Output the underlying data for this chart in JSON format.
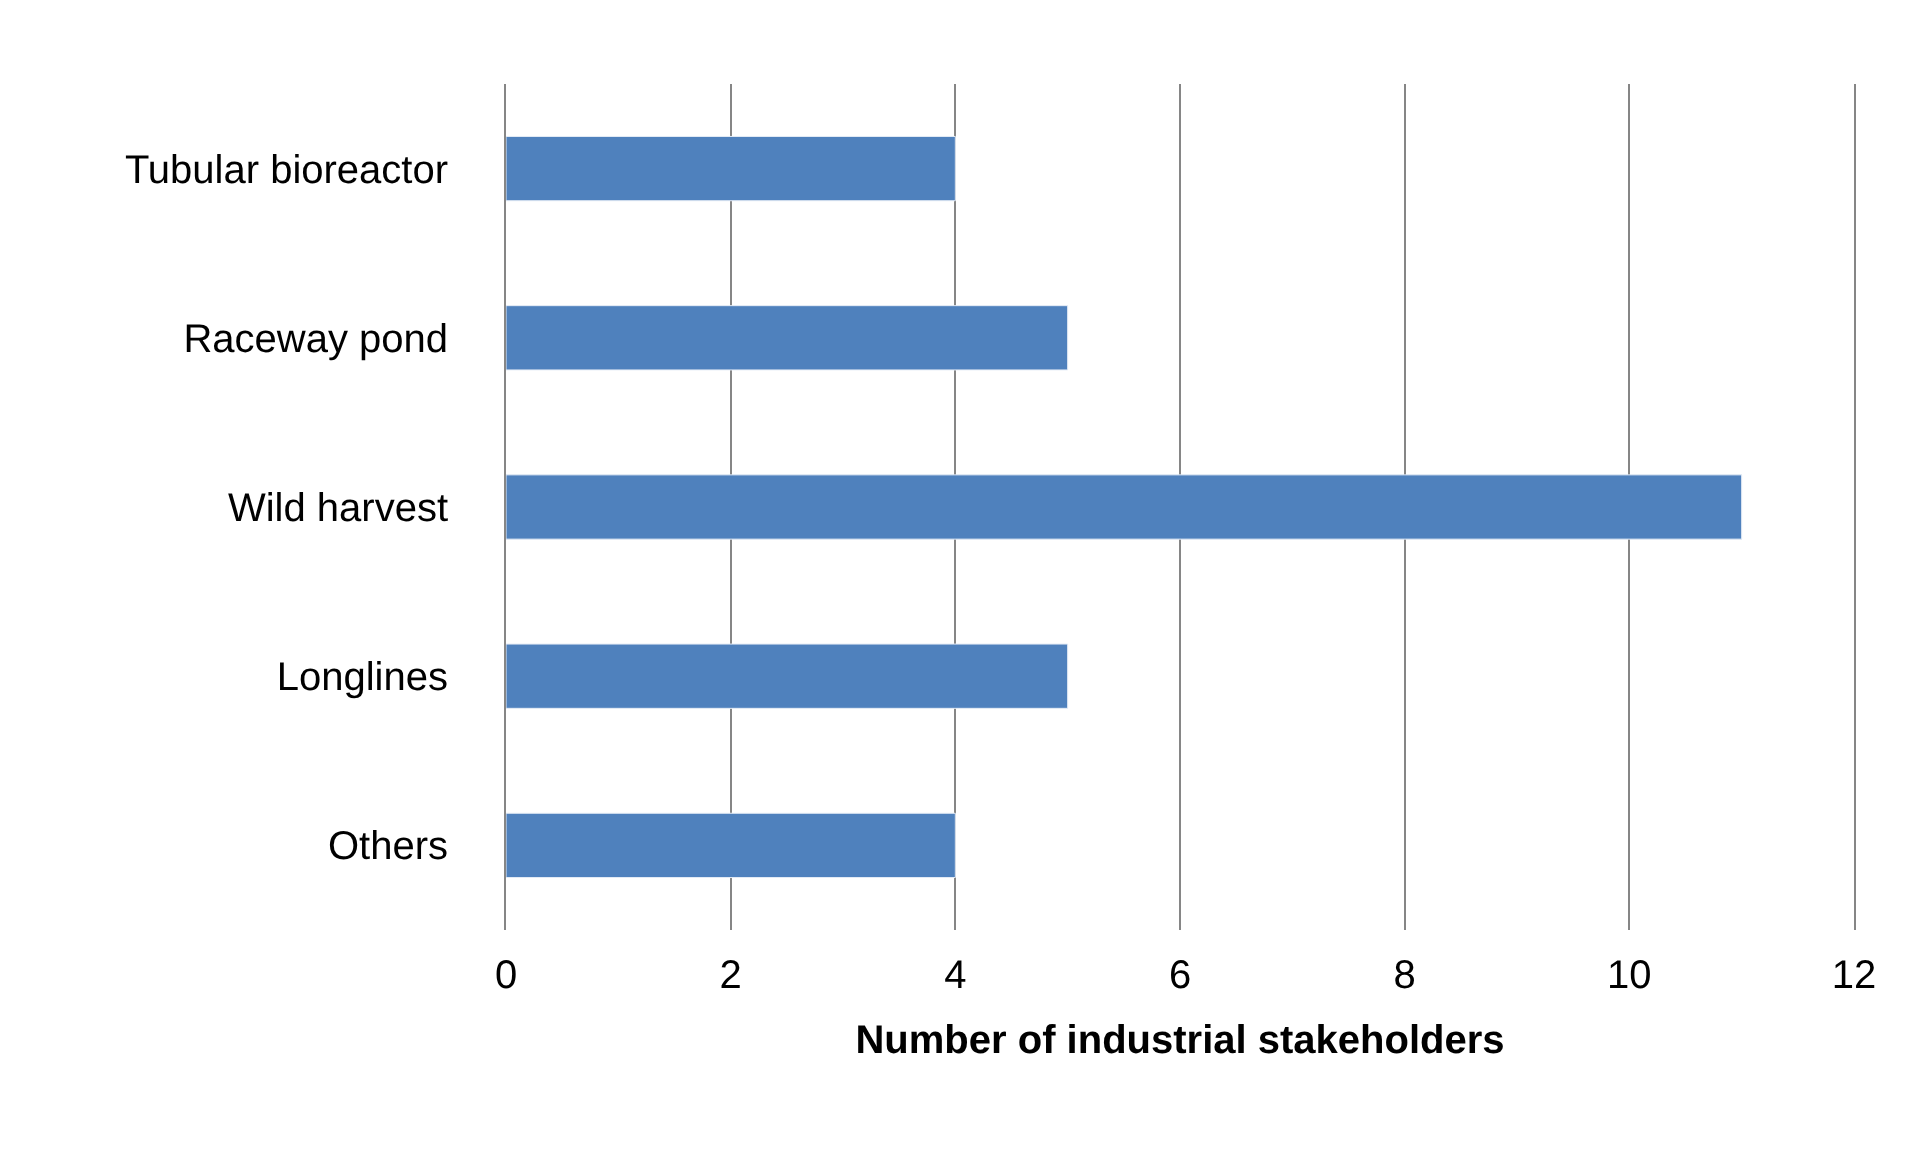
{
  "chart_data": {
    "type": "bar",
    "orientation": "horizontal",
    "xlabel": "Number of industrial stakeholders",
    "categories": [
      "Tubular bioreactor",
      "Raceway pond",
      "Wild harvest",
      "Longlines",
      "Others"
    ],
    "values": [
      4,
      5,
      11,
      5,
      4
    ],
    "color": "#4f81bd",
    "xlim": [
      0,
      12
    ],
    "xticks": [
      0,
      2,
      4,
      6,
      8,
      10,
      12
    ],
    "grid": "x"
  }
}
